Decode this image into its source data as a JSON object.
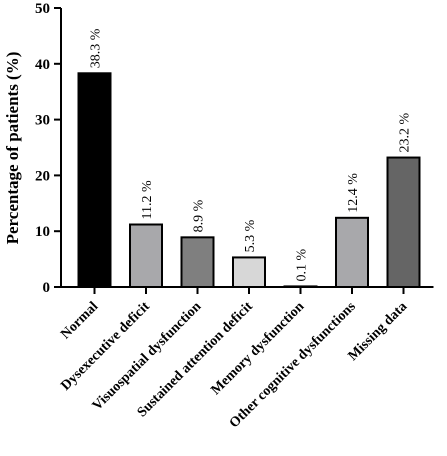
{
  "chart_data": {
    "type": "bar",
    "ylabel": "Percentage of patients (%)",
    "xlabel": "",
    "ylim": [
      0,
      50
    ],
    "yticks": [
      0,
      10,
      20,
      30,
      40,
      50
    ],
    "categories": [
      "Normal",
      "Dysexecutive deficit",
      "Visuospatial dysfunction",
      "Sustained attention deficit",
      "Memory dysfunction",
      "Other cognitive dysfunctions",
      "Missing data"
    ],
    "values": [
      38.3,
      11.2,
      8.9,
      5.3,
      0.1,
      12.4,
      23.2
    ],
    "data_labels": [
      "38.3 %",
      "11.2 %",
      "8.9 %",
      "5.3 %",
      "0.1 %",
      "12.4 %",
      "23.2 %"
    ],
    "bar_colors": [
      "#000000",
      "#a8a8ab",
      "#7f7f7f",
      "#d7d7d7",
      "#ffffff",
      "#a8a8ab",
      "#656565"
    ],
    "grid": false,
    "legend": "none"
  }
}
